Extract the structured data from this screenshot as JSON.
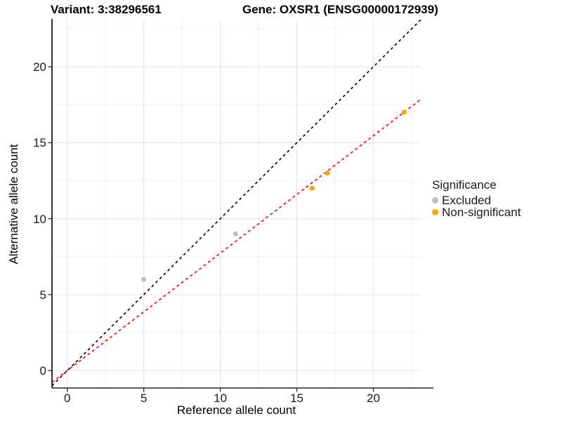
{
  "header": {
    "variant_title": "Variant: 3:38296561",
    "gene_title": "Gene: OXSR1 (ENSG00000172939)"
  },
  "legend": {
    "title": "Significance",
    "items": [
      {
        "label": "Excluded",
        "color": "#bebebe"
      },
      {
        "label": "Non-significant",
        "color": "#ffa500"
      }
    ]
  },
  "chart_data": {
    "type": "scatter",
    "xlabel": "Reference allele count",
    "ylabel": "Alternative allele count",
    "xlim": [
      -1,
      23.1
    ],
    "ylim": [
      -1.15,
      23.15
    ],
    "x_ticks": [
      0,
      5,
      10,
      15,
      20
    ],
    "y_ticks": [
      0,
      5,
      10,
      15,
      20
    ],
    "minor_gridlines_x": [
      2.5,
      7.5,
      12.5,
      17.5,
      22.5
    ],
    "minor_gridlines_y": [
      2.5,
      7.5,
      12.5,
      17.5,
      22.5
    ],
    "grid": true,
    "legend_position": "right",
    "series": [
      {
        "name": "Excluded",
        "color": "#bebebe",
        "points": [
          [
            5,
            6
          ],
          [
            11,
            9
          ]
        ]
      },
      {
        "name": "Non-significant",
        "color": "#ffa500",
        "points": [
          [
            16,
            12
          ],
          [
            17,
            13
          ],
          [
            22,
            17
          ]
        ]
      }
    ],
    "lines": [
      {
        "name": "identity",
        "color": "#000000",
        "dash": "dashed",
        "slope": 1,
        "intercept": 0
      },
      {
        "name": "fit",
        "color": "#ff0000",
        "dash": "dashed",
        "slope": 0.773,
        "intercept": 0
      }
    ],
    "colors": {
      "grid_major": "#e4e4e4",
      "grid_minor": "#efefef",
      "axis_line_y": "#1a1a1a",
      "axis_line_x": "#595959",
      "tick_mark": "#333333"
    }
  }
}
